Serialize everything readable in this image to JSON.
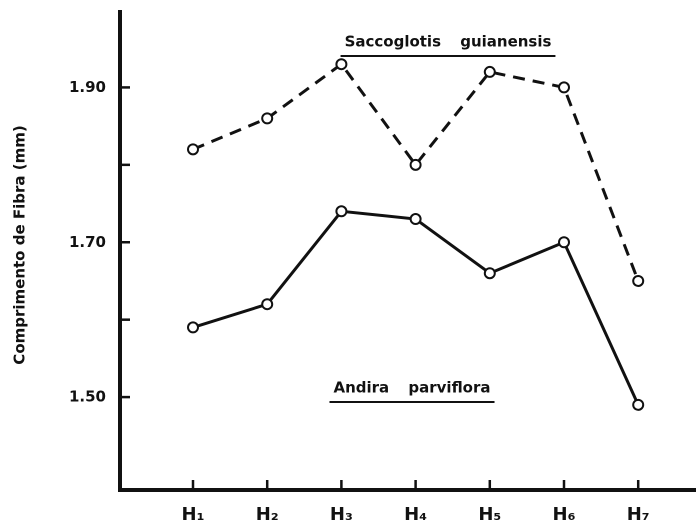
{
  "chart_data": {
    "type": "line",
    "y_label": "Comprimento de Fibra (mm)",
    "categories": [
      "H₁",
      "H₂",
      "H₃",
      "H₄",
      "H₅",
      "H₆",
      "H₇"
    ],
    "series": [
      {
        "name": "Saccoglotis guianensis",
        "color": "#111111",
        "dash": true,
        "values": [
          1.82,
          1.86,
          1.93,
          1.8,
          1.92,
          1.9,
          1.65
        ]
      },
      {
        "name": "Andira parviflora",
        "color": "#111111",
        "dash": false,
        "values": [
          1.59,
          1.62,
          1.74,
          1.73,
          1.66,
          1.7,
          1.49
        ]
      }
    ],
    "ylim": [
      1.38,
      2.0
    ],
    "yticks": [
      {
        "value": 1.5,
        "label": "1.50"
      },
      {
        "value": 1.7,
        "label": "1.70"
      },
      {
        "value": 1.9,
        "label": "1.90"
      }
    ],
    "minor_yticks": [
      1.6,
      1.8
    ],
    "grid": false
  }
}
